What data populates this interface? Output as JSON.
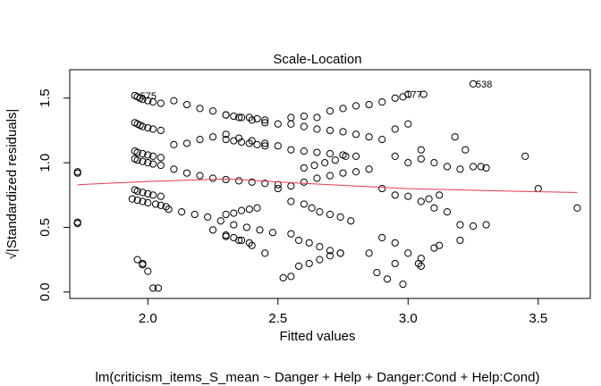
{
  "chart_data": {
    "type": "scatter",
    "title": "Scale-Location",
    "xlabel": "Fitted values",
    "sublabel": "lm(criticism_items_S_mean ~ Danger + Help + Danger:Cond + Help:Cond)",
    "ylabel": "√|Standardized residuals|",
    "xlim": [
      1.7,
      3.7
    ],
    "ylim": [
      -0.05,
      1.72
    ],
    "xticks": [
      2.0,
      2.5,
      3.0,
      3.5
    ],
    "xtick_labels": [
      "2.0",
      "2.5",
      "3.0",
      "3.5"
    ],
    "yticks": [
      0.0,
      0.5,
      1.0,
      1.5
    ],
    "ytick_labels": [
      "0.0",
      "0.5",
      "1.0",
      "1.5"
    ],
    "grid": false,
    "points_color": "#000000",
    "smooth_color": "#e8384f",
    "smooth_line": {
      "x": [
        1.73,
        2.0,
        2.3,
        2.6,
        3.0,
        3.4,
        3.65
      ],
      "y": [
        0.83,
        0.855,
        0.875,
        0.84,
        0.8,
        0.78,
        0.77
      ]
    },
    "points": {
      "x": [
        1.73,
        1.73,
        1.73,
        1.73,
        1.95,
        1.96,
        1.97,
        1.98,
        2.0,
        2.02,
        2.05,
        1.95,
        1.96,
        1.97,
        1.98,
        2.0,
        2.02,
        2.05,
        1.95,
        1.96,
        1.98,
        2.0,
        2.02,
        2.05,
        1.95,
        1.96,
        1.98,
        2.0,
        2.02,
        2.05,
        1.95,
        1.96,
        1.98,
        2.0,
        2.02,
        2.05,
        1.94,
        1.96,
        1.98,
        2.0,
        2.03,
        2.05,
        2.07,
        1.96,
        1.98,
        1.98,
        2.0,
        2.02,
        2.04,
        2.1,
        2.15,
        2.2,
        2.25,
        2.3,
        2.35,
        2.4,
        2.45,
        2.5,
        2.1,
        2.15,
        2.2,
        2.25,
        2.3,
        2.35,
        2.4,
        2.45,
        2.5,
        2.1,
        2.15,
        2.2,
        2.25,
        2.3,
        2.35,
        2.4,
        2.45,
        2.5,
        2.08,
        2.13,
        2.18,
        2.23,
        2.28,
        2.33,
        2.38,
        2.43,
        2.48,
        2.25,
        2.3,
        2.35,
        2.4,
        2.45,
        2.3,
        2.33,
        2.36,
        2.39,
        2.42,
        2.45,
        2.3,
        2.33,
        2.36,
        2.39,
        2.42,
        2.45,
        2.3,
        2.33,
        2.36,
        2.39,
        2.42,
        2.3,
        2.33,
        2.36,
        2.39,
        2.55,
        2.6,
        2.65,
        2.7,
        2.75,
        2.8,
        2.85,
        2.9,
        2.95,
        3.0,
        2.55,
        2.6,
        2.65,
        2.7,
        2.75,
        2.8,
        2.85,
        2.9,
        2.55,
        2.6,
        2.65,
        2.7,
        2.75,
        2.8,
        2.5,
        2.55,
        2.6,
        2.65,
        2.7,
        2.75,
        2.8,
        2.85,
        2.55,
        2.6,
        2.63,
        2.66,
        2.7,
        2.74,
        2.78,
        2.55,
        2.58,
        2.62,
        2.66,
        2.7,
        2.74,
        2.52,
        2.55,
        2.58,
        2.62,
        2.66,
        2.7,
        2.74,
        2.6,
        2.64,
        2.68,
        2.72,
        2.76,
        2.98,
        3.06,
        3.25,
        2.9,
        2.95,
        3.0,
        3.05,
        3.1,
        3.15,
        3.2,
        3.25,
        3.3,
        3.45,
        3.5,
        3.65,
        2.95,
        3.0,
        3.05,
        3.08,
        3.12,
        3.18,
        3.22,
        3.28,
        2.95,
        3.0,
        3.05,
        3.1,
        3.15,
        3.2,
        3.25,
        2.9,
        2.95,
        3.0,
        3.05,
        3.12,
        2.88,
        2.92,
        2.98,
        3.04,
        3.1,
        3.2,
        3.3,
        2.85,
        2.95,
        3.05
      ],
      "y": [
        0.93,
        0.92,
        0.54,
        0.53,
        1.52,
        1.51,
        1.5,
        1.49,
        1.48,
        1.47,
        1.46,
        1.31,
        1.3,
        1.29,
        1.28,
        1.27,
        1.26,
        1.25,
        1.09,
        1.08,
        1.07,
        1.06,
        1.05,
        1.04,
        1.03,
        1.02,
        1.01,
        1.0,
        0.99,
        0.98,
        0.79,
        0.78,
        0.77,
        0.76,
        0.75,
        0.74,
        0.72,
        0.71,
        0.7,
        0.69,
        0.68,
        0.67,
        0.66,
        0.25,
        0.22,
        0.21,
        0.16,
        0.03,
        0.03,
        1.48,
        1.45,
        1.42,
        1.4,
        1.37,
        1.35,
        1.33,
        1.31,
        1.3,
        1.14,
        1.15,
        1.18,
        1.2,
        1.22,
        1.19,
        1.17,
        1.15,
        1.13,
        0.95,
        0.92,
        0.9,
        0.88,
        0.87,
        0.86,
        0.85,
        0.84,
        0.83,
        0.64,
        0.62,
        0.6,
        0.58,
        0.55,
        0.52,
        0.5,
        0.48,
        0.46,
        0.48,
        0.44,
        0.4,
        0.36,
        0.3,
        1.37,
        1.36,
        1.35,
        1.35,
        1.34,
        1.33,
        1.18,
        1.17,
        1.16,
        1.15,
        1.14,
        1.13,
        0.6,
        0.61,
        0.63,
        0.64,
        0.65,
        0.43,
        0.42,
        0.4,
        0.38,
        1.35,
        1.36,
        1.35,
        1.4,
        1.42,
        1.44,
        1.45,
        1.47,
        1.5,
        1.53,
        1.3,
        1.28,
        1.26,
        1.25,
        1.24,
        1.22,
        1.2,
        1.18,
        1.1,
        1.09,
        1.08,
        1.07,
        1.06,
        1.05,
        0.8,
        0.82,
        0.85,
        0.88,
        0.9,
        0.92,
        0.93,
        0.95,
        0.7,
        0.68,
        0.65,
        0.62,
        0.6,
        0.58,
        0.55,
        0.45,
        0.4,
        0.38,
        0.35,
        0.32,
        0.3,
        0.11,
        0.12,
        0.2,
        0.22,
        0.25,
        0.28,
        0.3,
        0.96,
        0.98,
        1.0,
        1.02,
        1.05,
        1.51,
        1.53,
        1.61,
        0.8,
        1.05,
        1.0,
        1.03,
        1.0,
        0.97,
        0.95,
        0.97,
        0.96,
        1.05,
        0.8,
        0.65,
        1.26,
        1.3,
        1.1,
        0.72,
        0.75,
        1.2,
        1.1,
        0.97,
        0.75,
        0.74,
        0.7,
        0.65,
        0.62,
        0.52,
        0.51,
        0.42,
        0.38,
        0.3,
        0.2,
        0.36,
        0.15,
        0.1,
        0.06,
        0.22,
        0.34,
        0.4,
        0.52,
        0.3,
        0.22,
        0.26
      ],
      "labels": [
        {
          "x": 1.96,
          "y": 1.52,
          "text": "575"
        },
        {
          "x": 2.98,
          "y": 1.53,
          "text": "177"
        },
        {
          "x": 3.25,
          "y": 1.61,
          "text": "538"
        }
      ]
    }
  }
}
